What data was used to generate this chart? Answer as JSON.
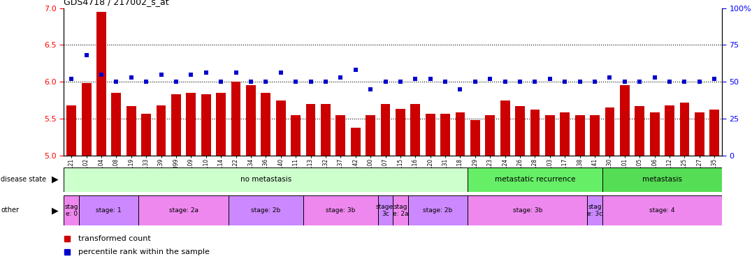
{
  "title": "GDS4718 / 217002_s_at",
  "samples": [
    "GSM549121",
    "GSM549102",
    "GSM549104",
    "GSM549108",
    "GSM549119",
    "GSM549133",
    "GSM549139",
    "GSM549099",
    "GSM549109",
    "GSM549110",
    "GSM549114",
    "GSM549122",
    "GSM549134",
    "GSM549136",
    "GSM549140",
    "GSM549111",
    "GSM549113",
    "GSM549132",
    "GSM549137",
    "GSM549142",
    "GSM549100",
    "GSM549107",
    "GSM549115",
    "GSM549116",
    "GSM549120",
    "GSM549131",
    "GSM549118",
    "GSM549129",
    "GSM549123",
    "GSM549124",
    "GSM549126",
    "GSM549128",
    "GSM549103",
    "GSM549117",
    "GSM549138",
    "GSM549141",
    "GSM549130",
    "GSM549101",
    "GSM549105",
    "GSM549106",
    "GSM549112",
    "GSM549125",
    "GSM549127",
    "GSM549135"
  ],
  "bar_values": [
    5.68,
    5.98,
    6.95,
    5.85,
    5.67,
    5.57,
    5.68,
    5.83,
    5.85,
    5.83,
    5.85,
    6.0,
    5.95,
    5.85,
    5.75,
    5.55,
    5.7,
    5.7,
    5.55,
    5.38,
    5.55,
    5.7,
    5.63,
    5.7,
    5.57,
    5.57,
    5.58,
    5.48,
    5.55,
    5.75,
    5.67,
    5.62,
    5.55,
    5.58,
    5.55,
    5.55,
    5.65,
    5.95,
    5.67,
    5.58,
    5.68,
    5.72,
    5.58,
    5.62
  ],
  "percentile_values": [
    52,
    68,
    55,
    50,
    53,
    50,
    55,
    50,
    55,
    56,
    50,
    56,
    50,
    50,
    56,
    50,
    50,
    50,
    53,
    58,
    45,
    50,
    50,
    52,
    52,
    50,
    45,
    50,
    52,
    50,
    50,
    50,
    52,
    50,
    50,
    50,
    53,
    50,
    50,
    53,
    50,
    50,
    50,
    52
  ],
  "ylim_left": [
    5.0,
    7.0
  ],
  "ylim_right": [
    0,
    100
  ],
  "yticks_left": [
    5.0,
    5.5,
    6.0,
    6.5,
    7.0
  ],
  "yticks_right": [
    0,
    25,
    50,
    75,
    100
  ],
  "ytick_labels_right": [
    "0",
    "25",
    "50",
    "75",
    "100%"
  ],
  "bar_color": "#cc0000",
  "dot_color": "#0000cc",
  "bar_bottom": 5.0,
  "disease_state_regions": [
    {
      "label": "no metastasis",
      "start": 0,
      "end": 27,
      "color": "#ccffcc"
    },
    {
      "label": "metastatic recurrence",
      "start": 27,
      "end": 36,
      "color": "#66ee66"
    },
    {
      "label": "metastasis",
      "start": 36,
      "end": 44,
      "color": "#55dd55"
    }
  ],
  "stage_regions": [
    {
      "label": "stag\ne: 0",
      "start": 0,
      "end": 1,
      "color": "#ee88ee"
    },
    {
      "label": "stage: 1",
      "start": 1,
      "end": 5,
      "color": "#cc88ff"
    },
    {
      "label": "stage: 2a",
      "start": 5,
      "end": 11,
      "color": "#ee88ee"
    },
    {
      "label": "stage: 2b",
      "start": 11,
      "end": 16,
      "color": "#cc88ff"
    },
    {
      "label": "stage: 3b",
      "start": 16,
      "end": 21,
      "color": "#ee88ee"
    },
    {
      "label": "stage:\n3c",
      "start": 21,
      "end": 22,
      "color": "#cc88ff"
    },
    {
      "label": "stag\ne: 2a",
      "start": 22,
      "end": 23,
      "color": "#ee88ee"
    },
    {
      "label": "stage: 2b",
      "start": 23,
      "end": 27,
      "color": "#cc88ff"
    },
    {
      "label": "stage: 3b",
      "start": 27,
      "end": 35,
      "color": "#ee88ee"
    },
    {
      "label": "stag\ne: 3c",
      "start": 35,
      "end": 36,
      "color": "#cc88ff"
    },
    {
      "label": "stage: 4",
      "start": 36,
      "end": 44,
      "color": "#ee88ee"
    }
  ],
  "legend_items": [
    {
      "label": "transformed count",
      "color": "#cc0000"
    },
    {
      "label": "percentile rank within the sample",
      "color": "#0000cc"
    }
  ]
}
